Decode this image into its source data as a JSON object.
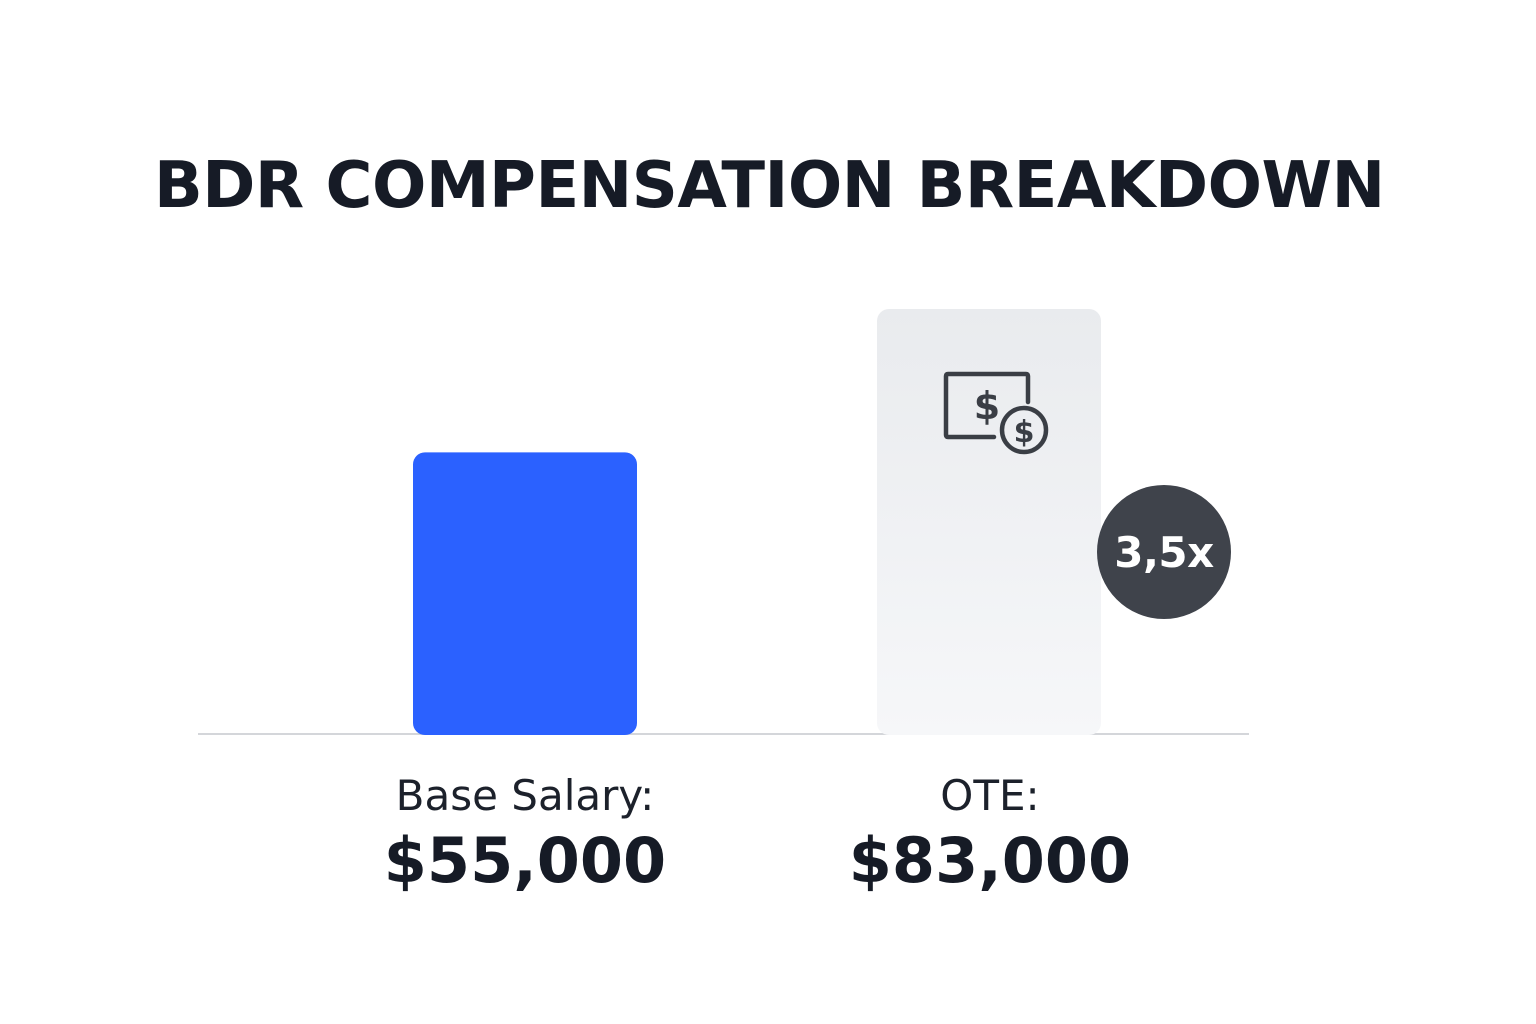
{
  "chart_data": {
    "type": "bar",
    "title": "BDR COMPENSATION BREAKDOWN",
    "categories": [
      "Base Salary:",
      "OTE:"
    ],
    "values": [
      55000,
      83000
    ],
    "value_labels": [
      "$55,000",
      "$83,000"
    ],
    "multiplier_label": "3,5x",
    "bar_colors": [
      "#2b61ff",
      "#eceef2"
    ],
    "badge_color": "#3f434b",
    "ote_icon": "money-bill-dollar-icon",
    "grid": false,
    "legend": "none"
  }
}
